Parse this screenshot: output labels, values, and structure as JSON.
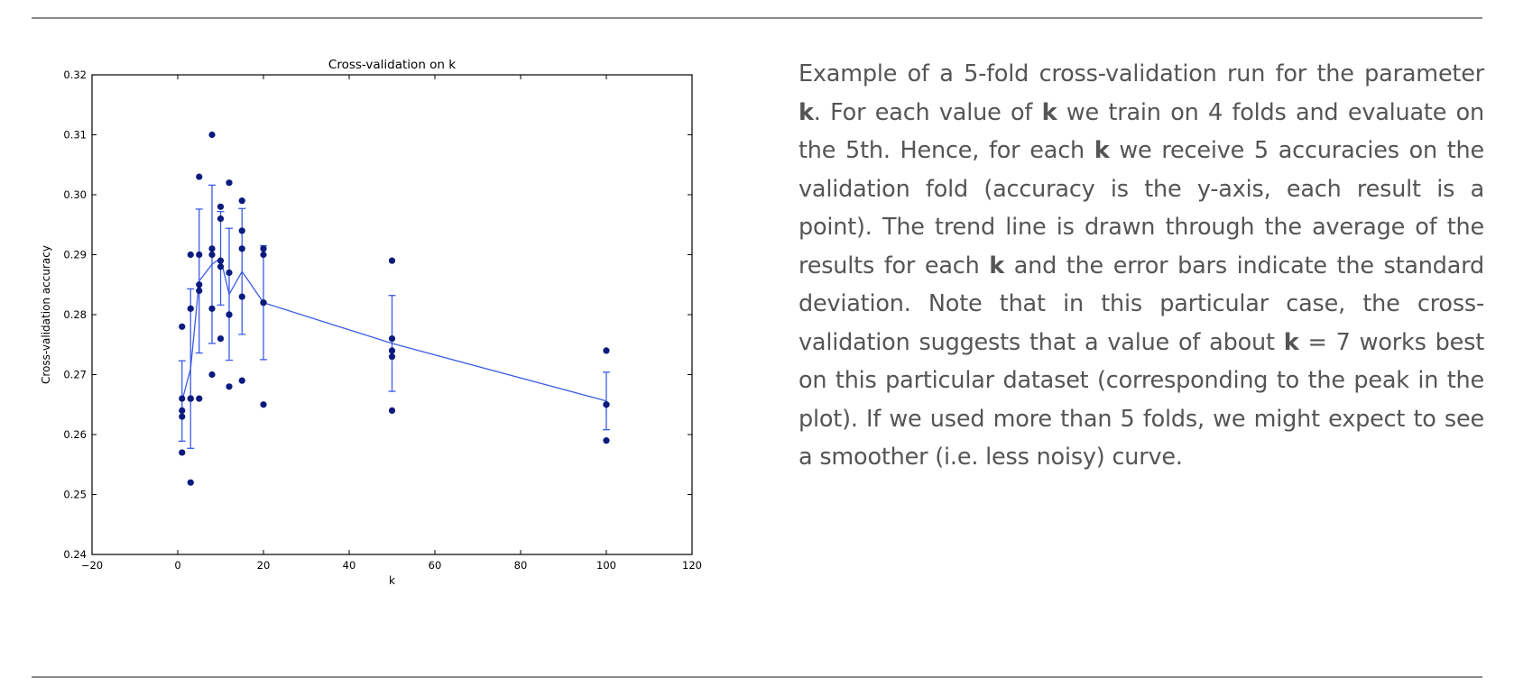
{
  "chart_data": {
    "type": "scatter",
    "title": "Cross-validation on k",
    "xlabel": "k",
    "ylabel": "Cross-validation accuracy",
    "xlim": [
      -20,
      120
    ],
    "ylim": [
      0.24,
      0.32
    ],
    "xticks": [
      -20,
      0,
      20,
      40,
      60,
      80,
      100,
      120
    ],
    "yticks": [
      0.24,
      0.25,
      0.26,
      0.27,
      0.28,
      0.29,
      0.3,
      0.31,
      0.32
    ],
    "xtick_labels": [
      "−20",
      "0",
      "20",
      "40",
      "60",
      "80",
      "100",
      "120"
    ],
    "ytick_labels": [
      "0.24",
      "0.25",
      "0.26",
      "0.27",
      "0.28",
      "0.29",
      "0.30",
      "0.31",
      "0.32"
    ],
    "grid": false,
    "colors": {
      "points": "#0b1a7e",
      "trend": "#3b5be8"
    },
    "points": [
      {
        "k": 1,
        "values": [
          0.278,
          0.266,
          0.264,
          0.263,
          0.257
        ]
      },
      {
        "k": 3,
        "values": [
          0.29,
          0.281,
          0.266,
          0.266,
          0.252
        ]
      },
      {
        "k": 5,
        "values": [
          0.303,
          0.29,
          0.285,
          0.284,
          0.266
        ]
      },
      {
        "k": 8,
        "values": [
          0.31,
          0.291,
          0.29,
          0.281,
          0.27
        ]
      },
      {
        "k": 10,
        "values": [
          0.298,
          0.296,
          0.289,
          0.288,
          0.276
        ]
      },
      {
        "k": 12,
        "values": [
          0.302,
          0.287,
          0.28,
          0.28,
          0.268
        ]
      },
      {
        "k": 15,
        "values": [
          0.299,
          0.294,
          0.291,
          0.283,
          0.269
        ]
      },
      {
        "k": 20,
        "values": [
          0.291,
          0.29,
          0.282,
          0.282,
          0.265
        ]
      },
      {
        "k": 50,
        "values": [
          0.289,
          0.276,
          0.274,
          0.273,
          0.264
        ]
      },
      {
        "k": 100,
        "values": [
          0.274,
          0.265,
          0.265,
          0.265,
          0.259
        ]
      }
    ],
    "trend": {
      "x": [
        1,
        3,
        5,
        8,
        10,
        12,
        15,
        20,
        50,
        100
      ],
      "mean": [
        0.2656,
        0.271,
        0.2856,
        0.2884,
        0.2894,
        0.2834,
        0.2872,
        0.282,
        0.2752,
        0.2656
      ],
      "std": [
        0.0067,
        0.0133,
        0.012,
        0.0132,
        0.0078,
        0.011,
        0.0105,
        0.0095,
        0.008,
        0.0048
      ]
    }
  },
  "caption": {
    "segments": [
      {
        "text": "Example of a 5-fold cross-validation run for the parameter "
      },
      {
        "text": "k",
        "bold": true
      },
      {
        "text": ". For each value of "
      },
      {
        "text": "k",
        "bold": true
      },
      {
        "text": " we train on 4 folds and evaluate on the 5th. Hence, for each "
      },
      {
        "text": "k",
        "bold": true
      },
      {
        "text": " we receive 5 accuracies on the validation fold (accuracy is the y-axis, each result is a point). The trend line is drawn through the average of the results for each "
      },
      {
        "text": "k",
        "bold": true
      },
      {
        "text": " and the error bars indicate the standard deviation. Note that in this particular case, the cross-validation suggests that a value of about "
      },
      {
        "text": "k",
        "bold": true
      },
      {
        "text": " = 7 works best on this particular dataset (corresponding to the peak in the plot). If we used more than 5 folds, we might expect to see a smoother (i.e. less noisy) curve."
      }
    ]
  }
}
